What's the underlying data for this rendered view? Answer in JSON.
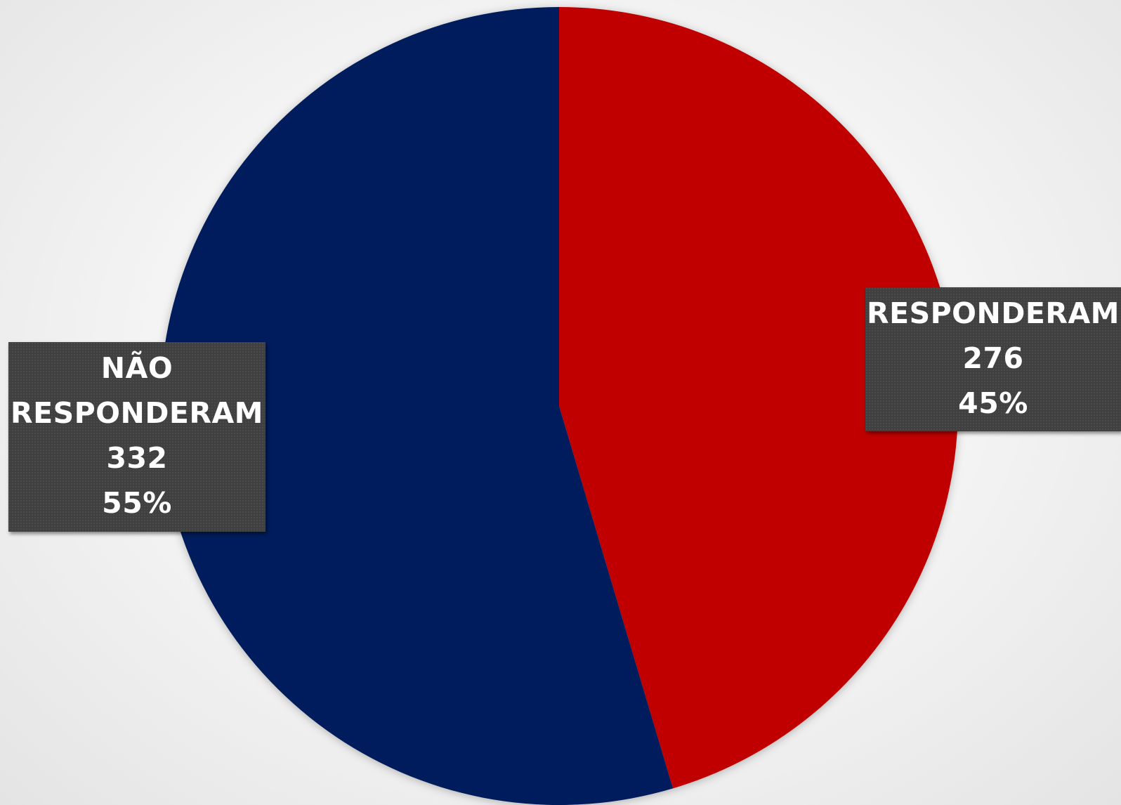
{
  "chart_data": {
    "type": "pie",
    "title": "",
    "slices": [
      {
        "label": "RESPONDERAM",
        "value": 276,
        "percent": "45%",
        "color": "#C00000"
      },
      {
        "label": "NÃO RESPONDERAM",
        "value": 332,
        "percent": "55%",
        "color": "#001F5C"
      }
    ],
    "data_labels": {
      "responderam": {
        "line1": "RESPONDERAM",
        "value": "276",
        "percent": "45%"
      },
      "nao_responderam": {
        "line1": "NÃO",
        "line2": "RESPONDERAM",
        "value": "332",
        "percent": "55%"
      }
    },
    "start_angle": "12 o'clock",
    "direction": "clockwise",
    "legend": "none"
  }
}
